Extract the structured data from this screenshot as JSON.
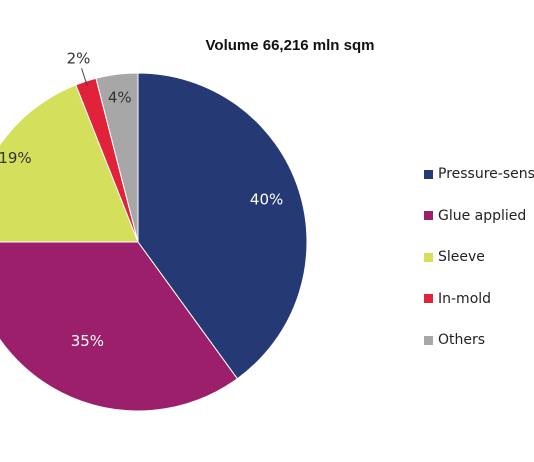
{
  "chart_data": {
    "type": "pie",
    "title": "Volume 66,216 mln sqm",
    "slices": [
      {
        "name": "Pressure-sensitive",
        "legend_label": "Pressure-sens",
        "value": 40,
        "label": "40%",
        "color": "#253974",
        "label_color": "#ffffff"
      },
      {
        "name": "Glue applied",
        "legend_label": "Glue applied",
        "value": 35,
        "label": "35%",
        "color": "#9b1f6b",
        "label_color": "#ffffff"
      },
      {
        "name": "Sleeve",
        "legend_label": "Sleeve",
        "value": 19,
        "label": "19%",
        "color": "#d4e05c",
        "label_color": "#333333"
      },
      {
        "name": "In-mold",
        "legend_label": "In-mold",
        "value": 2,
        "label": "2%",
        "color": "#e0233a",
        "label_color": "#333333"
      },
      {
        "name": "Others",
        "legend_label": "Others",
        "value": 4,
        "label": "4%",
        "color": "#a7a7a7",
        "label_color": "#333333"
      }
    ],
    "start_angle": "12 o'clock",
    "direction": "clockwise",
    "legend_position": "right",
    "leader_line_color": "#444444"
  }
}
